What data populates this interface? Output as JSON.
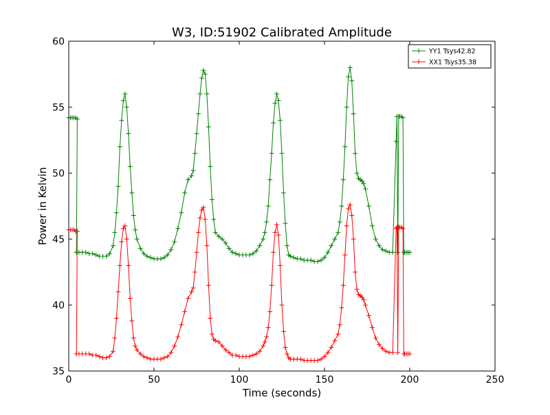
{
  "chart_data": {
    "type": "line",
    "title": "W3, ID:51902 Calibrated Amplitude",
    "xlabel": "Time (seconds)",
    "ylabel": "Power in Kelvin",
    "xlim": [
      0,
      250
    ],
    "ylim": [
      35,
      60
    ],
    "xticks": [
      0,
      50,
      100,
      150,
      200,
      250
    ],
    "yticks": [
      35,
      40,
      45,
      50,
      55,
      60
    ],
    "grid": false,
    "legend_position": "top-right",
    "marker": "+",
    "series": [
      {
        "name": "YY1 Tsys42.82",
        "color": "#008000",
        "x": [
          0,
          1,
          2,
          3,
          4,
          5,
          4.5,
          4.5,
          6,
          8,
          10,
          12,
          14,
          16,
          18,
          20,
          22,
          24,
          26,
          27,
          28,
          29,
          30,
          31,
          32,
          33,
          34,
          35,
          36,
          37,
          38,
          39,
          40,
          42,
          44,
          46,
          48,
          50,
          52,
          54,
          56,
          58,
          60,
          62,
          64,
          66,
          68,
          70,
          72,
          73,
          74,
          75,
          76,
          77,
          78,
          79,
          80,
          81,
          82,
          83,
          84,
          85,
          86,
          88,
          90,
          92,
          94,
          96,
          98,
          100,
          102,
          104,
          106,
          108,
          110,
          112,
          114,
          115,
          116,
          117,
          118,
          119,
          120,
          121,
          122,
          123,
          124,
          125,
          126,
          127,
          128,
          129,
          130,
          132,
          134,
          136,
          138,
          140,
          142,
          144,
          146,
          148,
          150,
          152,
          154,
          156,
          158,
          159,
          160,
          161,
          162,
          163,
          164,
          165,
          166,
          167,
          168,
          169,
          170,
          171,
          172,
          173,
          174,
          176,
          178,
          180,
          182,
          184,
          186,
          188,
          190,
          192,
          192.5,
          193,
          193.5,
          194,
          195,
          196,
          196.5,
          197,
          198,
          199,
          200
        ],
        "values": [
          54.2,
          54.2,
          54.2,
          54.2,
          54.2,
          54.1,
          44.0,
          44.0,
          44.0,
          44.0,
          44.0,
          43.9,
          43.9,
          43.8,
          43.7,
          43.7,
          43.7,
          43.9,
          44.5,
          45.5,
          47.0,
          49.0,
          52.0,
          54.0,
          55.5,
          56.0,
          55.0,
          53.0,
          50.5,
          48.5,
          46.8,
          45.7,
          45.0,
          44.3,
          43.9,
          43.7,
          43.6,
          43.5,
          43.5,
          43.5,
          43.6,
          43.8,
          44.2,
          44.8,
          45.8,
          47.0,
          48.5,
          49.5,
          49.8,
          50.2,
          51.5,
          53.0,
          54.5,
          56.0,
          57.2,
          57.8,
          57.5,
          56.0,
          53.5,
          50.5,
          48.0,
          46.5,
          45.5,
          45.2,
          45.0,
          44.7,
          44.3,
          44.0,
          43.9,
          43.8,
          43.8,
          43.8,
          43.8,
          43.9,
          44.1,
          44.5,
          45.0,
          45.5,
          46.3,
          47.5,
          49.5,
          51.5,
          53.8,
          55.3,
          56.0,
          55.5,
          54.0,
          51.5,
          48.5,
          46.2,
          44.5,
          43.8,
          43.7,
          43.6,
          43.5,
          43.5,
          43.4,
          43.4,
          43.4,
          43.3,
          43.3,
          43.4,
          43.6,
          44.0,
          44.5,
          45.0,
          45.5,
          46.3,
          47.5,
          49.5,
          52.0,
          55.0,
          57.3,
          58.0,
          57.0,
          54.5,
          51.5,
          50.0,
          49.6,
          49.5,
          49.4,
          49.2,
          48.8,
          47.5,
          46.0,
          45.0,
          44.5,
          44.2,
          44.1,
          44.0,
          44.0,
          52.4,
          54.3,
          44.0,
          54.3,
          54.3,
          54.3,
          54.2,
          44.0,
          44.0,
          44.0,
          44.0,
          44.0
        ]
      },
      {
        "name": "XX1 Tsys35.38",
        "color": "#ff0000",
        "x": [
          0,
          1,
          2,
          3,
          4,
          5,
          4.5,
          4.5,
          6,
          8,
          10,
          12,
          14,
          16,
          18,
          20,
          22,
          24,
          26,
          27,
          28,
          29,
          30,
          31,
          32,
          33,
          34,
          35,
          36,
          37,
          38,
          39,
          40,
          42,
          44,
          46,
          48,
          50,
          52,
          54,
          56,
          58,
          60,
          62,
          64,
          66,
          68,
          70,
          72,
          73,
          74,
          75,
          76,
          77,
          78,
          79,
          80,
          81,
          82,
          83,
          84,
          85,
          86,
          88,
          90,
          92,
          94,
          96,
          98,
          100,
          102,
          104,
          106,
          108,
          110,
          112,
          114,
          115,
          116,
          117,
          118,
          119,
          120,
          121,
          122,
          123,
          124,
          125,
          126,
          127,
          128,
          129,
          130,
          132,
          134,
          136,
          138,
          140,
          142,
          144,
          146,
          148,
          150,
          152,
          154,
          156,
          158,
          159,
          160,
          161,
          162,
          163,
          164,
          165,
          166,
          167,
          168,
          169,
          170,
          171,
          172,
          173,
          174,
          176,
          178,
          180,
          182,
          184,
          186,
          188,
          190,
          192,
          192.5,
          193,
          193.5,
          194,
          195,
          196,
          196.5,
          197,
          198,
          199,
          200
        ],
        "values": [
          45.7,
          45.7,
          45.7,
          45.7,
          45.6,
          45.6,
          36.3,
          36.3,
          36.3,
          36.3,
          36.3,
          36.3,
          36.2,
          36.2,
          36.1,
          36.0,
          36.0,
          36.1,
          36.5,
          37.5,
          39.0,
          41.0,
          43.0,
          44.8,
          45.8,
          46.0,
          45.0,
          43.0,
          40.5,
          38.8,
          37.5,
          36.9,
          36.6,
          36.3,
          36.1,
          36.0,
          35.9,
          35.9,
          35.9,
          35.9,
          36.0,
          36.1,
          36.4,
          36.9,
          37.6,
          38.5,
          39.5,
          40.5,
          41.0,
          41.3,
          42.5,
          44.0,
          45.5,
          46.6,
          47.2,
          47.4,
          46.5,
          44.5,
          41.5,
          39.0,
          37.8,
          37.4,
          37.3,
          37.2,
          36.9,
          36.6,
          36.4,
          36.2,
          36.2,
          36.1,
          36.1,
          36.1,
          36.1,
          36.2,
          36.3,
          36.5,
          36.9,
          37.2,
          37.6,
          38.3,
          39.5,
          41.5,
          44.0,
          45.5,
          46.1,
          45.3,
          43.0,
          40.0,
          38.0,
          36.8,
          36.3,
          36.0,
          35.9,
          35.9,
          35.9,
          35.9,
          35.8,
          35.8,
          35.8,
          35.8,
          35.8,
          35.9,
          36.1,
          36.4,
          36.8,
          37.3,
          37.8,
          38.5,
          39.8,
          41.5,
          43.8,
          46.0,
          47.3,
          47.6,
          46.8,
          45.0,
          42.5,
          41.2,
          40.8,
          40.7,
          40.6,
          40.4,
          40.0,
          39.2,
          38.3,
          37.5,
          37.0,
          36.7,
          36.5,
          36.4,
          36.4,
          45.8,
          45.9,
          36.4,
          45.9,
          45.9,
          45.9,
          45.8,
          36.3,
          36.3,
          36.3,
          36.3,
          36.3
        ]
      }
    ]
  }
}
